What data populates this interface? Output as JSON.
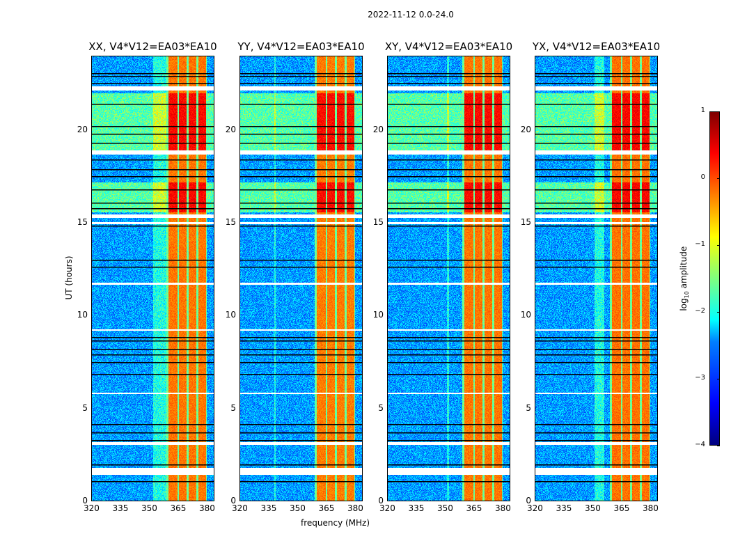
{
  "chart_data": {
    "type": "heatmap",
    "title": "2022-11-12 0.0-24.0",
    "xlabel": "frequency (MHz)",
    "ylabel": "UT (hours)",
    "xlim": [
      320,
      384
    ],
    "ylim": [
      0,
      24
    ],
    "xticks": [
      "320",
      "335",
      "350",
      "365",
      "380"
    ],
    "yticks": [
      "0",
      "5",
      "10",
      "15",
      "20"
    ],
    "panels": [
      {
        "title": "XX, V4*V12=EA03*EA10",
        "rfi_strength": 1.0,
        "wide_band_mhz": [
          352,
          360
        ]
      },
      {
        "title": "YY, V4*V12=EA03*EA10",
        "rfi_strength": 1.15,
        "wide_band_mhz": [
          338,
          338.6
        ]
      },
      {
        "title": "XY, V4*V12=EA03*EA10",
        "rfi_strength": 1.0,
        "wide_band_mhz": [
          351,
          352
        ]
      },
      {
        "title": "YX, V4*V12=EA03*EA10",
        "rfi_strength": 0.9,
        "wide_band_mhz": [
          351,
          356
        ]
      }
    ],
    "rfi_bands_mhz": [
      [
        360,
        364.5
      ],
      [
        365.5,
        369.5
      ],
      [
        370.5,
        374.5
      ],
      [
        375.5,
        379.5
      ]
    ],
    "background_log_amp": -2.6,
    "rfi_log_amp": -0.2,
    "elevated_periods_hours": [
      [
        18.9,
        22.0
      ],
      [
        15.6,
        17.2
      ]
    ],
    "flagged_gaps_hours": [
      [
        22.15,
        22.35
      ],
      [
        18.7,
        18.9
      ],
      [
        15.3,
        15.45
      ],
      [
        14.95,
        15.05
      ],
      [
        11.68,
        11.78
      ],
      [
        9.2,
        9.28
      ],
      [
        5.8,
        5.86
      ],
      [
        3.05,
        3.2
      ],
      [
        1.45,
        1.8
      ]
    ],
    "dark_lines_hours": [
      23.05,
      22.55,
      22.9,
      21.4,
      20.2,
      19.8,
      19.3,
      18.4,
      17.9,
      17.5,
      16.8,
      16.1,
      15.8,
      14.85,
      13.0,
      12.65,
      8.85,
      8.65,
      8.2,
      7.9,
      7.5,
      6.85,
      4.15,
      3.7,
      3.3,
      2.0,
      1.1
    ],
    "colorbar": {
      "label": "log10 amplitude",
      "range": [
        -4,
        1
      ],
      "ticks": [
        "1",
        "0",
        "−1",
        "−2",
        "−3",
        "−4"
      ],
      "colormap": "jet"
    }
  }
}
